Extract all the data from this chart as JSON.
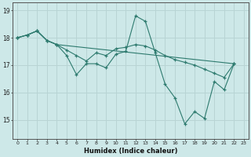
{
  "background_color": "#cde8e8",
  "grid_color": "#b8d4d4",
  "line_color": "#2d7a6e",
  "xlabel": "Humidex (Indice chaleur)",
  "xlim": [
    -0.5,
    23.5
  ],
  "ylim": [
    14.3,
    19.3
  ],
  "yticks": [
    15,
    16,
    17,
    18,
    19
  ],
  "xticks": [
    0,
    1,
    2,
    3,
    4,
    5,
    6,
    7,
    8,
    9,
    10,
    11,
    12,
    13,
    14,
    15,
    16,
    17,
    18,
    19,
    20,
    21,
    22,
    23
  ],
  "line1_x": [
    0,
    1,
    2,
    3,
    4,
    5,
    6,
    7,
    8,
    9,
    10,
    11,
    12,
    13,
    14,
    15,
    16,
    17,
    18,
    19,
    20,
    21,
    22
  ],
  "line1_y": [
    18.0,
    18.1,
    18.25,
    17.9,
    17.75,
    17.35,
    16.65,
    17.05,
    17.05,
    16.9,
    17.4,
    17.5,
    18.8,
    18.6,
    17.45,
    16.3,
    15.8,
    14.85,
    15.3,
    15.05,
    16.4,
    16.1,
    17.05
  ],
  "line2_x": [
    0,
    1,
    2,
    3,
    4,
    5,
    6,
    7,
    8,
    9,
    10,
    11,
    12,
    13,
    14,
    15,
    16,
    17,
    18,
    19,
    20,
    21,
    22
  ],
  "line2_y": [
    18.0,
    18.1,
    18.25,
    17.9,
    17.75,
    17.55,
    17.35,
    17.15,
    17.45,
    17.35,
    17.6,
    17.65,
    17.75,
    17.7,
    17.55,
    17.35,
    17.2,
    17.1,
    17.0,
    16.85,
    16.7,
    16.55,
    17.05
  ],
  "line3_x": [
    0,
    1,
    2,
    3,
    4,
    22
  ],
  "line3_y": [
    18.0,
    18.1,
    18.25,
    17.9,
    17.75,
    17.05
  ]
}
